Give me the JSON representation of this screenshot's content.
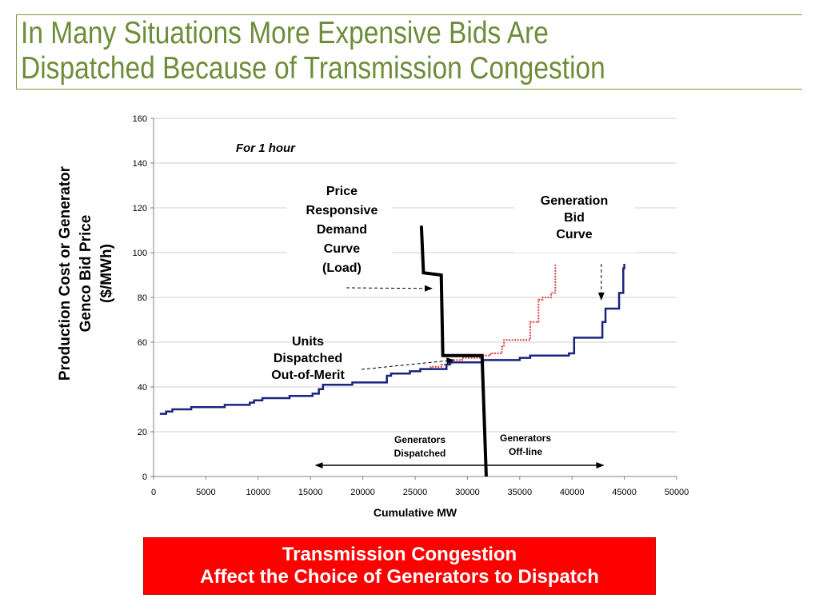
{
  "slide": {
    "title_line1": "In Many Situations More Expensive Bids Are",
    "title_line2": "Dispatched Because of Transmission Congestion",
    "title_color": "#6e8d3a"
  },
  "banner": {
    "line1": "Transmission Congestion",
    "line2": "Affect the Choice of Generators to Dispatch",
    "background": "#ff0000",
    "text_color": "#ffffff"
  },
  "chart_data": {
    "type": "line",
    "xlabel": "Cumulative MW",
    "ylabel_lines": [
      "Production Cost or Generator",
      "Genco Bid Price",
      "($/MWh)"
    ],
    "xlim": [
      0,
      50000
    ],
    "ylim": [
      0,
      160
    ],
    "x_ticks": [
      0,
      5000,
      10000,
      15000,
      20000,
      25000,
      30000,
      35000,
      40000,
      45000,
      50000
    ],
    "y_ticks": [
      0,
      20,
      40,
      60,
      80,
      100,
      120,
      140,
      160
    ],
    "grid": "horizontal",
    "legend": "none",
    "series": [
      {
        "style": "solid",
        "color": "#1a237e",
        "x": [
          600,
          1200,
          1800,
          3000,
          3600,
          5000,
          6000,
          6800,
          7500,
          9200,
          9600,
          10400,
          13000,
          15200,
          15800,
          16200,
          18000,
          19000,
          20000,
          21200,
          22300,
          22700,
          24000,
          24500,
          25500,
          26400,
          28000,
          28300,
          31000,
          31500,
          34000,
          35000,
          36000,
          37000,
          38500,
          39700,
          40200,
          42500,
          42900,
          43200,
          44500,
          44900,
          45000
        ],
        "y": [
          28,
          29,
          30,
          30,
          31,
          31,
          31,
          32,
          32,
          33,
          34,
          35,
          36,
          37,
          39,
          41,
          41,
          42,
          42,
          42,
          45,
          46,
          46,
          47,
          48,
          48,
          50,
          51,
          51,
          52,
          52,
          53,
          54,
          54,
          54,
          55,
          62,
          62,
          69,
          75,
          82,
          93,
          95
        ]
      },
      {
        "style": "dotted",
        "color": "#e04040",
        "x": [
          25500,
          26500,
          27500,
          28500,
          29500,
          30500,
          31500,
          32200,
          33300,
          33500,
          35500,
          36000,
          36800,
          37200,
          38000,
          38400
        ],
        "y": [
          48,
          49,
          50,
          52,
          53,
          53,
          54,
          55,
          58,
          61,
          61,
          69,
          79,
          80,
          82,
          95
        ]
      },
      {
        "style": "solid",
        "color": "#000000",
        "x": [
          25600,
          25800,
          27500,
          27650,
          31400,
          31800
        ],
        "y": [
          112,
          91,
          90,
          54,
          54,
          0
        ]
      }
    ],
    "annotations": [
      {
        "text": "For 1 hour",
        "style": "bold-italic"
      },
      {
        "text_lines": [
          "Price",
          "Responsive",
          "Demand",
          "Curve",
          "(Load)"
        ],
        "points_to": [
          26600,
          84
        ]
      },
      {
        "text_lines": [
          "Generation",
          "Bid",
          "Curve"
        ],
        "points_to": [
          42800,
          79
        ]
      },
      {
        "text_lines": [
          "Units",
          "Dispatched",
          "Out-of-Merit"
        ],
        "points_to": [
          28700,
          52
        ]
      },
      {
        "text_lines": [
          "Generators",
          "Dispatched"
        ]
      },
      {
        "text_lines": [
          "Generators",
          "Off-line"
        ]
      }
    ],
    "range_arrow": {
      "x": [
        15500,
        43000
      ],
      "y": 5
    }
  }
}
